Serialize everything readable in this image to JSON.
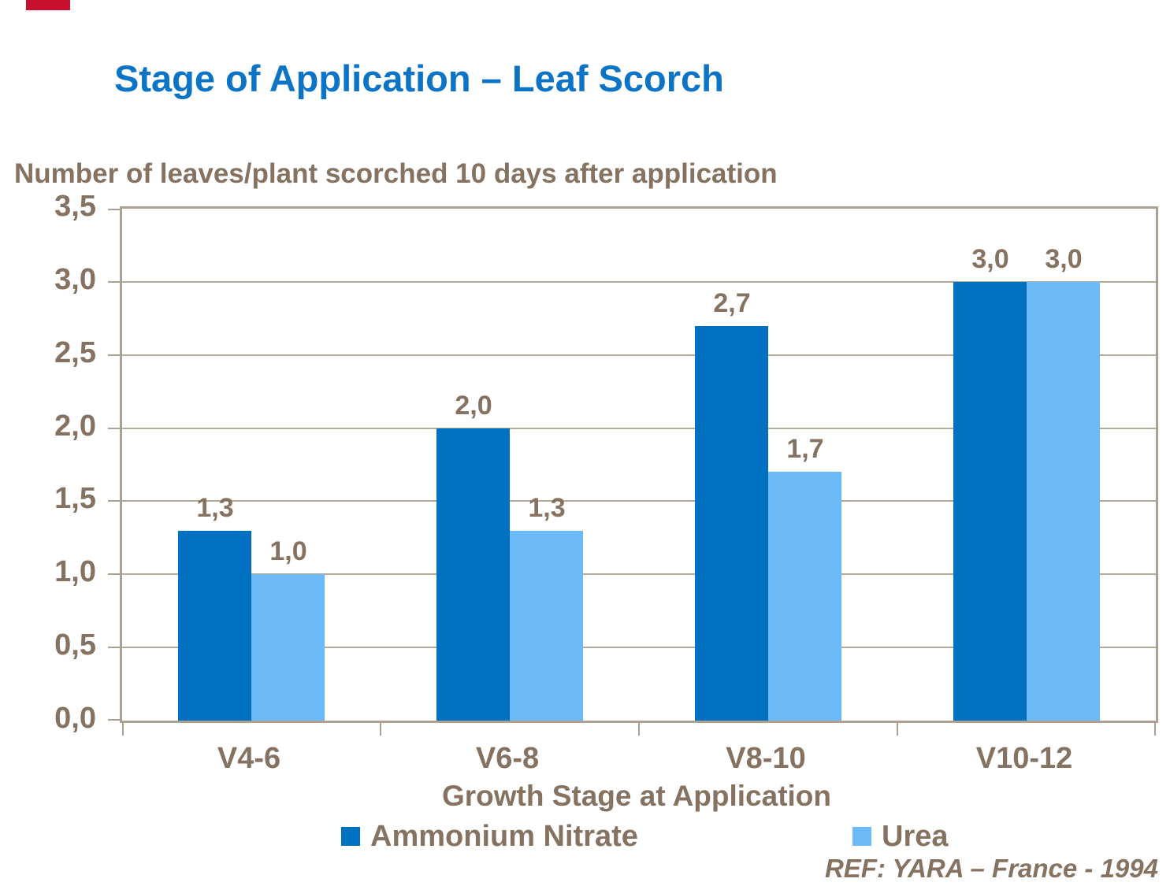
{
  "slide": {
    "footer_ref": "REF: YARA – France - 1994",
    "colors": {
      "title_blue": "#0C74C6",
      "text_taupe": "#857260",
      "grid_taupe": "#B5AA9A",
      "border_taupe": "#ACA092",
      "accent_red": "#C8102E"
    }
  },
  "chart_data": {
    "type": "bar",
    "title": "Stage of Application – Leaf Scorch",
    "ylabel": "Number of leaves/plant scorched 10 days after application",
    "xlabel": "Growth Stage at Application",
    "categories": [
      "V4-6",
      "V6-8",
      "V8-10",
      "V10-12"
    ],
    "series": [
      {
        "name": "Ammonium Nitrate",
        "color": "#0070C0",
        "values": [
          1.3,
          2.0,
          2.7,
          3.0
        ],
        "value_labels": [
          "1,3",
          "2,0",
          "2,7",
          "3,0"
        ]
      },
      {
        "name": "Urea",
        "color": "#6CBAF8",
        "values": [
          1.0,
          1.3,
          1.7,
          3.0
        ],
        "value_labels": [
          "1,0",
          "1,3",
          "1,7",
          "3,0"
        ]
      }
    ],
    "ylim": [
      0,
      3.5
    ],
    "ytick_step": 0.5,
    "ytick_labels": [
      "0,0",
      "0,5",
      "1,0",
      "1,5",
      "2,0",
      "2,5",
      "3,0",
      "3,5"
    ],
    "decimal_separator": ",",
    "grid": true,
    "legend_position": "bottom"
  }
}
